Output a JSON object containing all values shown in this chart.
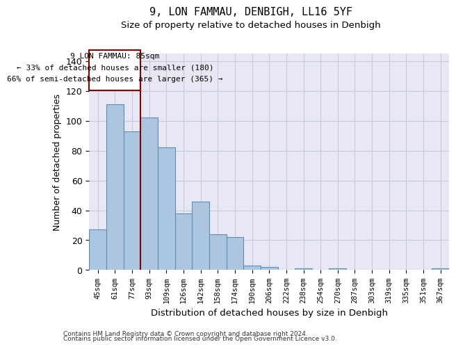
{
  "title1": "9, LON FAMMAU, DENBIGH, LL16 5YF",
  "title2": "Size of property relative to detached houses in Denbigh",
  "xlabel": "Distribution of detached houses by size in Denbigh",
  "ylabel": "Number of detached properties",
  "categories": [
    "45sqm",
    "61sqm",
    "77sqm",
    "93sqm",
    "109sqm",
    "126sqm",
    "142sqm",
    "158sqm",
    "174sqm",
    "190sqm",
    "206sqm",
    "222sqm",
    "238sqm",
    "254sqm",
    "270sqm",
    "287sqm",
    "303sqm",
    "319sqm",
    "335sqm",
    "351sqm",
    "367sqm"
  ],
  "values": [
    27,
    111,
    93,
    102,
    82,
    38,
    46,
    24,
    22,
    3,
    2,
    0,
    1,
    0,
    1,
    0,
    0,
    0,
    0,
    0,
    1
  ],
  "bar_color": "#adc6e0",
  "bar_edge_color": "#5b8db8",
  "grid_color": "#c8c8dc",
  "background_color": "#e8e8f4",
  "ylim": [
    0,
    145
  ],
  "yticks": [
    0,
    20,
    40,
    60,
    80,
    100,
    120,
    140
  ],
  "red_line_x": 2.5,
  "annotation_text_line1": "9 LON FAMMAU: 85sqm",
  "annotation_text_line2": "← 33% of detached houses are smaller (180)",
  "annotation_text_line3": "66% of semi-detached houses are larger (365) →",
  "footnote1": "Contains HM Land Registry data © Crown copyright and database right 2024.",
  "footnote2": "Contains public sector information licensed under the Open Government Licence v3.0."
}
